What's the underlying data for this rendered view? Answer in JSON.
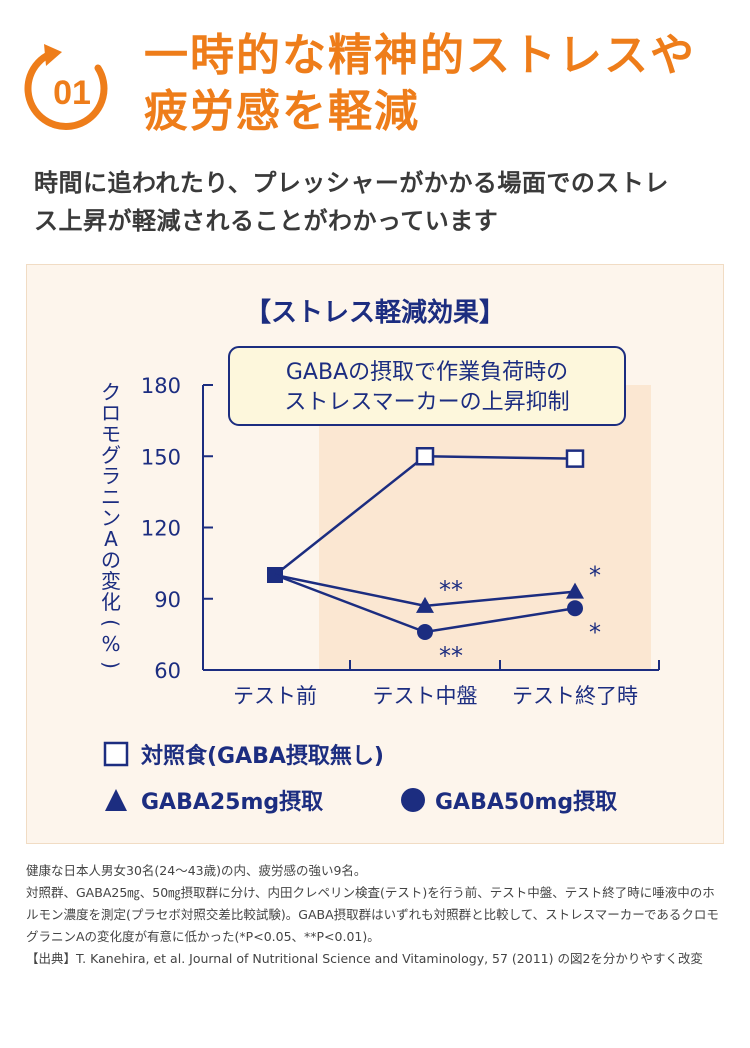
{
  "header": {
    "number": "01",
    "title_line1": "一時的な精神的ストレスや",
    "title_line2": "疲労感を軽減",
    "subtitle_line1": "時間に追われたり、プレッシャーがかかる場面でのストレ",
    "subtitle_line2": "ス上昇が軽減されることがわかっています",
    "accent_color": "#ee7d1a"
  },
  "chart_data": {
    "type": "line",
    "title": "【ストレス軽減効果】",
    "callout_line1": "GABAの摂取で作業負荷時の",
    "callout_line2": "ストレスマーカーの上昇抑制",
    "ylabel": "クロモグラニンAの変化(%)",
    "xlabel": "",
    "ylim": [
      60,
      180
    ],
    "yticks": [
      60,
      90,
      120,
      150,
      180
    ],
    "ytick_labels": [
      "60",
      "90",
      "120",
      "150",
      "180"
    ],
    "categories": [
      "テスト前",
      "テスト中盤",
      "テスト終了時"
    ],
    "series": [
      {
        "name": "対照食(GABA摂取無し)",
        "marker": "square-open",
        "values": [
          100,
          150,
          149
        ]
      },
      {
        "name": "GABA25mg摂取",
        "marker": "triangle",
        "values": [
          100,
          87,
          93
        ]
      },
      {
        "name": "GABA50mg摂取",
        "marker": "circle",
        "values": [
          100,
          76,
          86
        ]
      }
    ],
    "annotations": [
      {
        "series": 1,
        "point": 1,
        "text": "**",
        "pos": "above"
      },
      {
        "series": 1,
        "point": 2,
        "text": "*",
        "pos": "above"
      },
      {
        "series": 2,
        "point": 1,
        "text": "**",
        "pos": "below"
      },
      {
        "series": 2,
        "point": 2,
        "text": "*",
        "pos": "below"
      }
    ],
    "legend": [
      "対照食(GABA摂取無し)",
      "GABA25mg摂取",
      "GABA50mg摂取"
    ],
    "color": "#1c2d80",
    "highlight_color": "#fbe7d2"
  },
  "notes": {
    "line1": "健康な日本人男女30名(24〜43歳)の内、疲労感の強い9名。",
    "line2": "対照群、GABA25㎎、50㎎摂取群に分け、内田クレペリン検査(テスト)を行う前、テスト中盤、テスト終了時に唾液中のホルモン濃度を測定(プラセボ対照交差比較試験)。GABA摂取群はいずれも対照群と比較して、ストレスマーカーであるクロモグラニンAの変化度が有意に低かった(*P<0.05、**P<0.01)。",
    "line3": "【出典】T. Kanehira, et al. Journal of Nutritional Science and Vitaminology, 57 (2011) の図2を分かりやすく改変"
  }
}
